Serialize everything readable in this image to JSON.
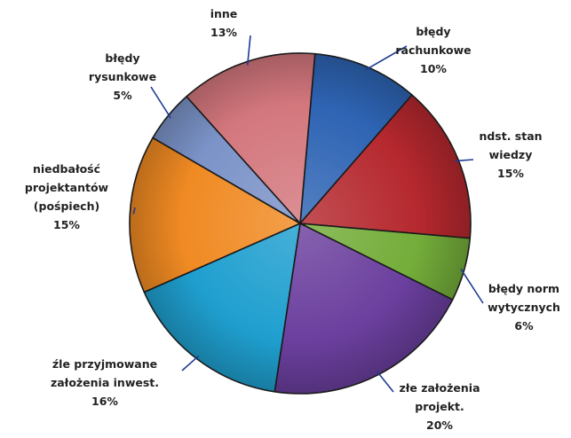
{
  "chart_data": {
    "type": "pie",
    "title": "",
    "slices": [
      {
        "label": [
          "błędy",
          "rachunkowe"
        ],
        "value": 10,
        "value_text": "10%",
        "color": "#2e64b4"
      },
      {
        "label": [
          "ndst. stan",
          "wiedzy"
        ],
        "value": 15,
        "value_text": "15%",
        "color": "#b5282e"
      },
      {
        "label": [
          "błędy norm",
          "wytycznych"
        ],
        "value": 6,
        "value_text": "6%",
        "color": "#74ad3a"
      },
      {
        "label": [
          "złe założenia",
          "projekt."
        ],
        "value": 20,
        "value_text": "20%",
        "color": "#6b3f9e"
      },
      {
        "label": [
          "źle przyjmowane",
          "założenia inwest."
        ],
        "value": 16,
        "value_text": "16%",
        "color": "#1f9fcf"
      },
      {
        "label": [
          "niedbałość",
          "projektantów",
          "(pośpiech)"
        ],
        "value": 15,
        "value_text": "15%",
        "color": "#f08a23"
      },
      {
        "label": [
          "błędy",
          "rysunkowe"
        ],
        "value": 5,
        "value_text": "5%",
        "color": "#7b93c8"
      },
      {
        "label": [
          "inne"
        ],
        "value": 13,
        "value_text": "13%",
        "color": "#d3777d"
      }
    ]
  }
}
